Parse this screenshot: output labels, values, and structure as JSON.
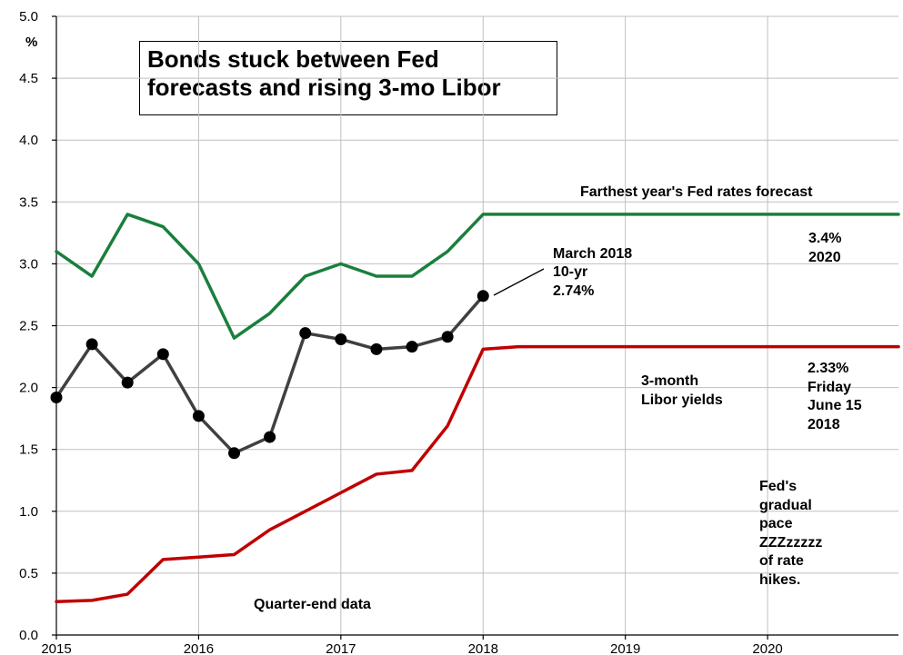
{
  "chart_data": {
    "type": "line",
    "title": [
      "Bonds stuck between Fed",
      "forecasts and rising 3-mo Libor"
    ],
    "ylabel": "%",
    "ylim": [
      0,
      5
    ],
    "xlim": [
      2015,
      2020.92
    ],
    "grid": true,
    "y_ticks": [
      "0.0",
      "0.5",
      "1.0",
      "1.5",
      "2.0",
      "2.5",
      "3.0",
      "3.5",
      "4.0",
      "4.5",
      "5.0"
    ],
    "x_ticks": [
      "2015",
      "2016",
      "2017",
      "2018",
      "2019",
      "2020"
    ],
    "series": [
      {
        "name": "Farthest year's Fed rates forecast",
        "color": "#1a7f3c",
        "x": [
          2015.0,
          2015.25,
          2015.5,
          2015.75,
          2016.0,
          2016.25,
          2016.5,
          2016.75,
          2017.0,
          2017.25,
          2017.5,
          2017.75,
          2018.0,
          2020.92
        ],
        "y": [
          3.1,
          2.9,
          3.4,
          3.3,
          3.0,
          2.4,
          2.6,
          2.9,
          3.0,
          2.9,
          2.9,
          3.1,
          3.4,
          3.4
        ]
      },
      {
        "name": "10-yr",
        "color": "#404040",
        "markers": true,
        "x": [
          2015.0,
          2015.25,
          2015.5,
          2015.75,
          2016.0,
          2016.25,
          2016.5,
          2016.75,
          2017.0,
          2017.25,
          2017.5,
          2017.75,
          2018.0
        ],
        "y": [
          1.92,
          2.35,
          2.04,
          2.27,
          1.77,
          1.47,
          1.6,
          2.44,
          2.39,
          2.31,
          2.33,
          2.41,
          2.74
        ]
      },
      {
        "name": "3-month Libor yields",
        "color": "#c00000",
        "x": [
          2015.0,
          2015.25,
          2015.5,
          2015.75,
          2016.0,
          2016.25,
          2016.5,
          2016.75,
          2017.0,
          2017.25,
          2017.5,
          2017.75,
          2018.0,
          2018.25,
          2020.92
        ],
        "y": [
          0.27,
          0.28,
          0.33,
          0.61,
          0.63,
          0.65,
          0.85,
          1.0,
          1.15,
          1.3,
          1.33,
          1.69,
          2.31,
          2.33,
          2.33
        ]
      }
    ],
    "annotations": {
      "fed_label": "Farthest year's Fed rates forecast",
      "fed_end": [
        "3.4%",
        "2020"
      ],
      "tenyr": [
        "March 2018",
        "10-yr",
        "2.74%"
      ],
      "libor_label": [
        "3-month",
        "Libor yields"
      ],
      "libor_end": [
        "2.33%",
        "Friday",
        "June 15",
        "2018"
      ],
      "fed_pace": [
        "Fed's",
        "gradual",
        "pace",
        "ZZZzzzzz",
        "of rate",
        "hikes."
      ],
      "quarter_end": "Quarter-end data"
    }
  }
}
